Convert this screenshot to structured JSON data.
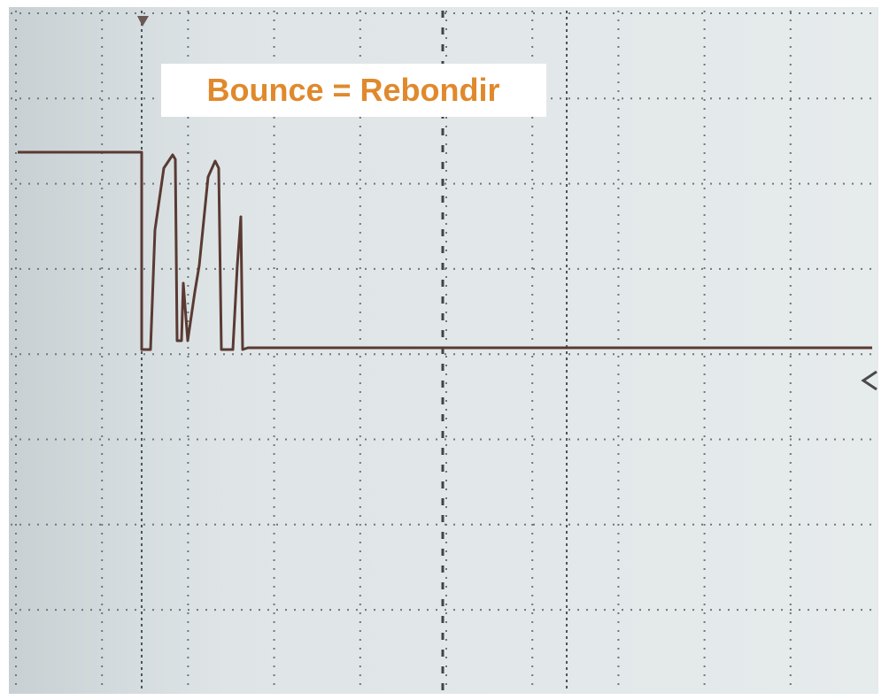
{
  "annotation": {
    "text": "Bounce = Rebondir"
  }
}
